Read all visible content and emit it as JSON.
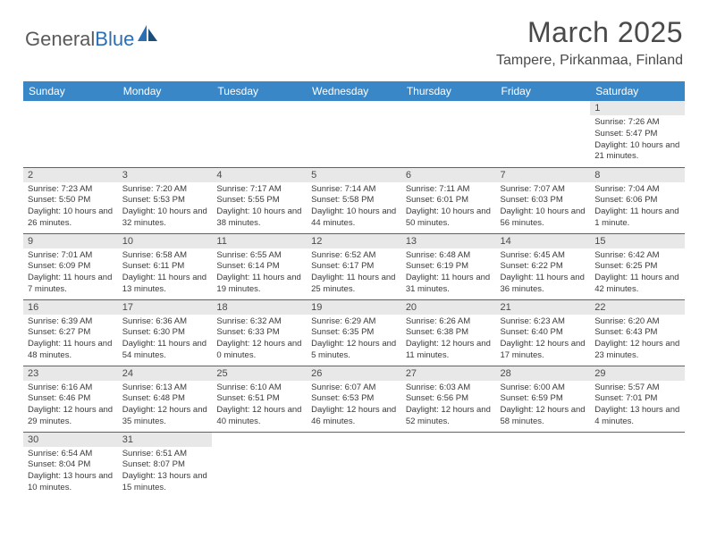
{
  "logo": {
    "text_left": "General",
    "text_right": "Blue"
  },
  "title": "March 2025",
  "location": "Tampere, Pirkanmaa, Finland",
  "colors": {
    "header_bg": "#3a87c8",
    "header_text": "#ffffff",
    "border": "#2a6fb5",
    "daynum_bg": "#e8e8e8",
    "text": "#4a4a4a",
    "logo_gray": "#5a5a5a",
    "logo_blue": "#2a6fb5"
  },
  "weekdays": [
    "Sunday",
    "Monday",
    "Tuesday",
    "Wednesday",
    "Thursday",
    "Friday",
    "Saturday"
  ],
  "weeks": [
    [
      null,
      null,
      null,
      null,
      null,
      null,
      {
        "n": "1",
        "sr": "7:26 AM",
        "ss": "5:47 PM",
        "dl": "10 hours and 21 minutes."
      }
    ],
    [
      {
        "n": "2",
        "sr": "7:23 AM",
        "ss": "5:50 PM",
        "dl": "10 hours and 26 minutes."
      },
      {
        "n": "3",
        "sr": "7:20 AM",
        "ss": "5:53 PM",
        "dl": "10 hours and 32 minutes."
      },
      {
        "n": "4",
        "sr": "7:17 AM",
        "ss": "5:55 PM",
        "dl": "10 hours and 38 minutes."
      },
      {
        "n": "5",
        "sr": "7:14 AM",
        "ss": "5:58 PM",
        "dl": "10 hours and 44 minutes."
      },
      {
        "n": "6",
        "sr": "7:11 AM",
        "ss": "6:01 PM",
        "dl": "10 hours and 50 minutes."
      },
      {
        "n": "7",
        "sr": "7:07 AM",
        "ss": "6:03 PM",
        "dl": "10 hours and 56 minutes."
      },
      {
        "n": "8",
        "sr": "7:04 AM",
        "ss": "6:06 PM",
        "dl": "11 hours and 1 minute."
      }
    ],
    [
      {
        "n": "9",
        "sr": "7:01 AM",
        "ss": "6:09 PM",
        "dl": "11 hours and 7 minutes."
      },
      {
        "n": "10",
        "sr": "6:58 AM",
        "ss": "6:11 PM",
        "dl": "11 hours and 13 minutes."
      },
      {
        "n": "11",
        "sr": "6:55 AM",
        "ss": "6:14 PM",
        "dl": "11 hours and 19 minutes."
      },
      {
        "n": "12",
        "sr": "6:52 AM",
        "ss": "6:17 PM",
        "dl": "11 hours and 25 minutes."
      },
      {
        "n": "13",
        "sr": "6:48 AM",
        "ss": "6:19 PM",
        "dl": "11 hours and 31 minutes."
      },
      {
        "n": "14",
        "sr": "6:45 AM",
        "ss": "6:22 PM",
        "dl": "11 hours and 36 minutes."
      },
      {
        "n": "15",
        "sr": "6:42 AM",
        "ss": "6:25 PM",
        "dl": "11 hours and 42 minutes."
      }
    ],
    [
      {
        "n": "16",
        "sr": "6:39 AM",
        "ss": "6:27 PM",
        "dl": "11 hours and 48 minutes."
      },
      {
        "n": "17",
        "sr": "6:36 AM",
        "ss": "6:30 PM",
        "dl": "11 hours and 54 minutes."
      },
      {
        "n": "18",
        "sr": "6:32 AM",
        "ss": "6:33 PM",
        "dl": "12 hours and 0 minutes."
      },
      {
        "n": "19",
        "sr": "6:29 AM",
        "ss": "6:35 PM",
        "dl": "12 hours and 5 minutes."
      },
      {
        "n": "20",
        "sr": "6:26 AM",
        "ss": "6:38 PM",
        "dl": "12 hours and 11 minutes."
      },
      {
        "n": "21",
        "sr": "6:23 AM",
        "ss": "6:40 PM",
        "dl": "12 hours and 17 minutes."
      },
      {
        "n": "22",
        "sr": "6:20 AM",
        "ss": "6:43 PM",
        "dl": "12 hours and 23 minutes."
      }
    ],
    [
      {
        "n": "23",
        "sr": "6:16 AM",
        "ss": "6:46 PM",
        "dl": "12 hours and 29 minutes."
      },
      {
        "n": "24",
        "sr": "6:13 AM",
        "ss": "6:48 PM",
        "dl": "12 hours and 35 minutes."
      },
      {
        "n": "25",
        "sr": "6:10 AM",
        "ss": "6:51 PM",
        "dl": "12 hours and 40 minutes."
      },
      {
        "n": "26",
        "sr": "6:07 AM",
        "ss": "6:53 PM",
        "dl": "12 hours and 46 minutes."
      },
      {
        "n": "27",
        "sr": "6:03 AM",
        "ss": "6:56 PM",
        "dl": "12 hours and 52 minutes."
      },
      {
        "n": "28",
        "sr": "6:00 AM",
        "ss": "6:59 PM",
        "dl": "12 hours and 58 minutes."
      },
      {
        "n": "29",
        "sr": "5:57 AM",
        "ss": "7:01 PM",
        "dl": "13 hours and 4 minutes."
      }
    ],
    [
      {
        "n": "30",
        "sr": "6:54 AM",
        "ss": "8:04 PM",
        "dl": "13 hours and 10 minutes."
      },
      {
        "n": "31",
        "sr": "6:51 AM",
        "ss": "8:07 PM",
        "dl": "13 hours and 15 minutes."
      },
      null,
      null,
      null,
      null,
      null
    ]
  ],
  "labels": {
    "sunrise": "Sunrise:",
    "sunset": "Sunset:",
    "daylight": "Daylight:"
  }
}
